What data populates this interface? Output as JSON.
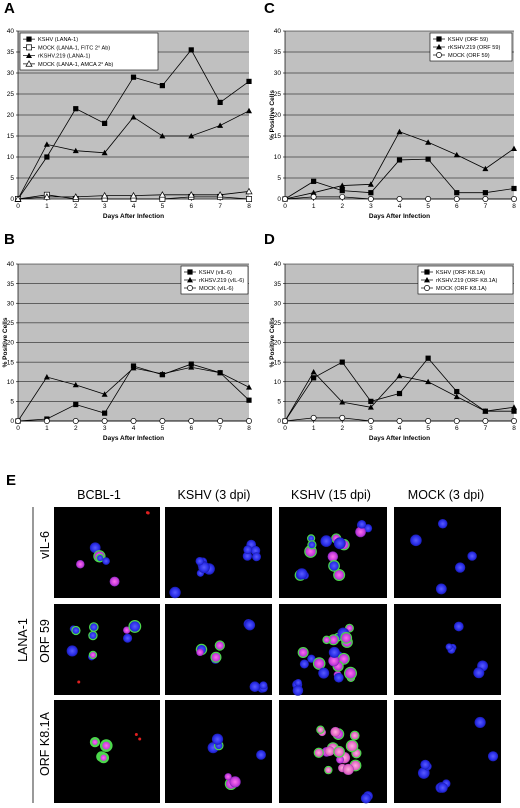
{
  "figure_e": {
    "letter": "E",
    "columns": [
      "BCBL-1",
      "KSHV (3 dpi)",
      "KSHV (15 dpi)",
      "MOCK (3 dpi)"
    ],
    "group_label": "LANA-1",
    "rows": [
      "vIL-6",
      "ORF 59",
      "ORF K8.1A"
    ]
  },
  "chart_data": [
    {
      "type": "line",
      "panel": "A",
      "xlabel": "Days After Infection",
      "ylabel": "",
      "x": [
        0,
        1,
        2,
        3,
        4,
        5,
        6,
        7,
        8
      ],
      "xlim": [
        0,
        8
      ],
      "ylim": [
        0,
        40
      ],
      "yticks": [
        0,
        5,
        10,
        15,
        20,
        25,
        30,
        35,
        40
      ],
      "grid": true,
      "legend_position": "top-left",
      "series": [
        {
          "name": "KSHV (LANA-1)",
          "marker": "square-filled",
          "values": [
            0,
            10,
            21.5,
            18,
            29,
            27,
            35.5,
            23,
            28
          ]
        },
        {
          "name": "MOCK (LANA-1, FITC 2° Ab)",
          "marker": "square-open",
          "values": [
            0,
            1,
            0,
            0,
            0,
            0,
            0.5,
            0.5,
            0
          ]
        },
        {
          "name": "rKSHV.219 (LANA-1)",
          "marker": "triangle-filled",
          "values": [
            0,
            13,
            11.5,
            11,
            19.5,
            15,
            15,
            17.5,
            21
          ]
        },
        {
          "name": "MOCK (LANA-1, AMCA 2° Ab)",
          "marker": "triangle-open",
          "values": [
            0,
            0.5,
            0.5,
            0.8,
            0.8,
            1,
            1,
            1,
            1.8
          ]
        }
      ]
    },
    {
      "type": "line",
      "panel": "B",
      "xlabel": "Days After Infection",
      "ylabel": "% Positive Cells",
      "x": [
        0,
        1,
        2,
        3,
        4,
        5,
        6,
        7,
        8
      ],
      "xlim": [
        0,
        8
      ],
      "ylim": [
        0,
        40
      ],
      "yticks": [
        0,
        5,
        10,
        15,
        20,
        25,
        30,
        35,
        40
      ],
      "grid": true,
      "legend_position": "top-right",
      "series": [
        {
          "name": "KSHV (vIL-6)",
          "marker": "square-filled",
          "values": [
            0,
            0.5,
            4.2,
            2,
            14,
            11.8,
            14.5,
            12.3,
            5.3
          ]
        },
        {
          "name": "rKHSV.219 (vIL-6)",
          "marker": "triangle-filled",
          "values": [
            0,
            11.2,
            9.2,
            6.8,
            13.5,
            12,
            13.7,
            12.3,
            8.6
          ]
        },
        {
          "name": "MOCK (vIL-6)",
          "marker": "circle-open",
          "values": [
            0,
            0,
            0,
            0,
            0,
            0,
            0,
            0,
            0
          ]
        }
      ]
    },
    {
      "type": "line",
      "panel": "C",
      "xlabel": "Days After Infection",
      "ylabel": "% Positive Cells",
      "x": [
        0,
        1,
        2,
        3,
        4,
        5,
        6,
        7,
        8
      ],
      "xlim": [
        0,
        8
      ],
      "ylim": [
        0,
        40
      ],
      "yticks": [
        0,
        5,
        10,
        15,
        20,
        25,
        30,
        35,
        40
      ],
      "grid": true,
      "legend_position": "top-right",
      "series": [
        {
          "name": "KSHV (ORF 59)",
          "marker": "square-filled",
          "values": [
            0,
            4.2,
            2,
            1.5,
            9.3,
            9.5,
            1.5,
            1.5,
            2.5
          ]
        },
        {
          "name": "rKSHV.219 (ORF 59)",
          "marker": "triangle-filled",
          "values": [
            0,
            1.5,
            3.2,
            3.5,
            16,
            13.5,
            10.5,
            7.2,
            12
          ]
        },
        {
          "name": "MOCK (ORF 59)",
          "marker": "circle-open",
          "values": [
            0,
            0.5,
            0.5,
            0,
            0,
            0,
            0,
            0,
            0
          ]
        }
      ]
    },
    {
      "type": "line",
      "panel": "D",
      "xlabel": "Days After Infection",
      "ylabel": "% Positive Cells",
      "x": [
        0,
        1,
        2,
        3,
        4,
        5,
        6,
        7,
        8
      ],
      "xlim": [
        0,
        8
      ],
      "ylim": [
        0,
        40
      ],
      "yticks": [
        0,
        5,
        10,
        15,
        20,
        25,
        30,
        35,
        40
      ],
      "grid": true,
      "legend_position": "top-right",
      "series": [
        {
          "name": "KSHV (ORF K8.1A)",
          "marker": "square-filled",
          "values": [
            0,
            11,
            15,
            5,
            7,
            16,
            7.5,
            2.5,
            2.5
          ]
        },
        {
          "name": "rKSHV.219 (ORF K8.1A)",
          "marker": "triangle-filled",
          "values": [
            0,
            12.5,
            4.8,
            3.5,
            11.5,
            10,
            6.2,
            2.5,
            3.5
          ]
        },
        {
          "name": "MOCK (ORF K8.1A)",
          "marker": "circle-open",
          "values": [
            0,
            0.8,
            0.8,
            0,
            0,
            0,
            0,
            0,
            0
          ]
        }
      ]
    }
  ]
}
